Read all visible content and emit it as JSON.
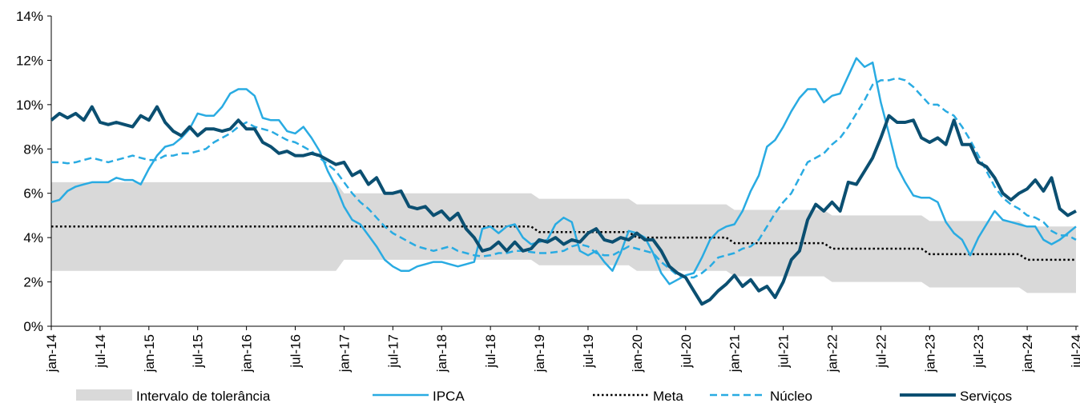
{
  "chart_data": {
    "type": "line",
    "categories": [
      "jan-14",
      null,
      null,
      null,
      null,
      null,
      "jul-14",
      null,
      null,
      null,
      null,
      null,
      "jan-15",
      null,
      null,
      null,
      null,
      null,
      "jul-15",
      null,
      null,
      null,
      null,
      null,
      "jan-16",
      null,
      null,
      null,
      null,
      null,
      "jul-16",
      null,
      null,
      null,
      null,
      null,
      "jan-17",
      null,
      null,
      null,
      null,
      null,
      "jul-17",
      null,
      null,
      null,
      null,
      null,
      "jan-18",
      null,
      null,
      null,
      null,
      null,
      "jul-18",
      null,
      null,
      null,
      null,
      null,
      "jan-19",
      null,
      null,
      null,
      null,
      null,
      "jul-19",
      null,
      null,
      null,
      null,
      null,
      "jan-20",
      null,
      null,
      null,
      null,
      null,
      "jul-20",
      null,
      null,
      null,
      null,
      null,
      "jan-21",
      null,
      null,
      null,
      null,
      null,
      "jul-21",
      null,
      null,
      null,
      null,
      null,
      "jan-22",
      null,
      null,
      null,
      null,
      null,
      "jul-22",
      null,
      null,
      null,
      null,
      null,
      "jan-23",
      null,
      null,
      null,
      null,
      null,
      "jul-23",
      null,
      null,
      null,
      null,
      null,
      "jan-24",
      null,
      null,
      null,
      null,
      null,
      "jul-24"
    ],
    "ylim": [
      0,
      14
    ],
    "yticks": [
      {
        "value": 0,
        "label": "0%"
      },
      {
        "value": 2,
        "label": "2%"
      },
      {
        "value": 4,
        "label": "4%"
      },
      {
        "value": 6,
        "label": "6%"
      },
      {
        "value": 8,
        "label": "8%"
      },
      {
        "value": 10,
        "label": "10%"
      },
      {
        "value": 12,
        "label": "12%"
      },
      {
        "value": 14,
        "label": "14%"
      }
    ],
    "series": [
      {
        "name": "Intervalo de tolerância",
        "kind": "band",
        "color": "#d9d9d9",
        "values": [
          6.5,
          6.5,
          6.5,
          6.5,
          6.5,
          6.5,
          6.5,
          6.5,
          6.5,
          6.5,
          6.5,
          6.5,
          6.5,
          6.5,
          6.5,
          6.5,
          6.5,
          6.5,
          6.5,
          6.5,
          6.5,
          6.5,
          6.5,
          6.5,
          6.5,
          6.5,
          6.5,
          6.5,
          6.5,
          6.5,
          6.5,
          6.5,
          6.5,
          6.5,
          6.5,
          6.5,
          6,
          6,
          6,
          6,
          6,
          6,
          6,
          6,
          6,
          6,
          6,
          6,
          6,
          6,
          6,
          6,
          6,
          6,
          6,
          6,
          6,
          6,
          6,
          6,
          5.75,
          5.75,
          5.75,
          5.75,
          5.75,
          5.75,
          5.75,
          5.75,
          5.75,
          5.75,
          5.75,
          5.75,
          5.5,
          5.5,
          5.5,
          5.5,
          5.5,
          5.5,
          5.5,
          5.5,
          5.5,
          5.5,
          5.5,
          5.5,
          5.25,
          5.25,
          5.25,
          5.25,
          5.25,
          5.25,
          5.25,
          5.25,
          5.25,
          5.25,
          5.25,
          5.25,
          5,
          5,
          5,
          5,
          5,
          5,
          5,
          5,
          5,
          5,
          5,
          5,
          4.75,
          4.75,
          4.75,
          4.75,
          4.75,
          4.75,
          4.75,
          4.75,
          4.75,
          4.75,
          4.75,
          4.75,
          4.5,
          4.5,
          4.5,
          4.5,
          4.5,
          4.5,
          4.5
        ],
        "lower": [
          2.5,
          2.5,
          2.5,
          2.5,
          2.5,
          2.5,
          2.5,
          2.5,
          2.5,
          2.5,
          2.5,
          2.5,
          2.5,
          2.5,
          2.5,
          2.5,
          2.5,
          2.5,
          2.5,
          2.5,
          2.5,
          2.5,
          2.5,
          2.5,
          2.5,
          2.5,
          2.5,
          2.5,
          2.5,
          2.5,
          2.5,
          2.5,
          2.5,
          2.5,
          2.5,
          2.5,
          3,
          3,
          3,
          3,
          3,
          3,
          3,
          3,
          3,
          3,
          3,
          3,
          3,
          3,
          3,
          3,
          3,
          3,
          3,
          3,
          3,
          3,
          3,
          3,
          2.75,
          2.75,
          2.75,
          2.75,
          2.75,
          2.75,
          2.75,
          2.75,
          2.75,
          2.75,
          2.75,
          2.75,
          2.5,
          2.5,
          2.5,
          2.5,
          2.5,
          2.5,
          2.5,
          2.5,
          2.5,
          2.5,
          2.5,
          2.5,
          2.25,
          2.25,
          2.25,
          2.25,
          2.25,
          2.25,
          2.25,
          2.25,
          2.25,
          2.25,
          2.25,
          2.25,
          2,
          2,
          2,
          2,
          2,
          2,
          2,
          2,
          2,
          2,
          2,
          2,
          1.75,
          1.75,
          1.75,
          1.75,
          1.75,
          1.75,
          1.75,
          1.75,
          1.75,
          1.75,
          1.75,
          1.75,
          1.5,
          1.5,
          1.5,
          1.5,
          1.5,
          1.5,
          1.5
        ]
      },
      {
        "name": "IPCA",
        "color": "#29abe2",
        "style": "solid",
        "width": 2.5,
        "values": [
          5.6,
          5.7,
          6.1,
          6.3,
          6.4,
          6.5,
          6.5,
          6.5,
          6.7,
          6.6,
          6.6,
          6.4,
          7.1,
          7.7,
          8.1,
          8.2,
          8.5,
          8.9,
          9.6,
          9.5,
          9.5,
          9.9,
          10.5,
          10.7,
          10.7,
          10.4,
          9.4,
          9.3,
          9.3,
          8.8,
          8.7,
          9.0,
          8.5,
          7.9,
          7.0,
          6.3,
          5.4,
          4.8,
          4.6,
          4.1,
          3.6,
          3.0,
          2.7,
          2.5,
          2.5,
          2.7,
          2.8,
          2.9,
          2.9,
          2.8,
          2.7,
          2.8,
          2.9,
          4.4,
          4.5,
          4.2,
          4.5,
          4.6,
          4.0,
          3.7,
          3.8,
          3.9,
          4.6,
          4.9,
          4.7,
          3.4,
          3.2,
          3.4,
          2.9,
          2.5,
          3.3,
          4.3,
          4.2,
          4.0,
          3.3,
          2.4,
          1.9,
          2.1,
          2.3,
          2.4,
          3.1,
          3.9,
          4.3,
          4.5,
          4.6,
          5.2,
          6.1,
          6.8,
          8.1,
          8.4,
          9.0,
          9.7,
          10.3,
          10.7,
          10.7,
          10.1,
          10.4,
          10.5,
          11.3,
          12.1,
          11.7,
          11.9,
          10.1,
          8.7,
          7.2,
          6.5,
          5.9,
          5.8,
          5.8,
          5.6,
          4.7,
          4.2,
          3.9,
          3.2,
          4.0,
          4.6,
          5.2,
          4.8,
          4.7,
          4.6,
          4.5,
          4.5,
          3.9,
          3.7,
          3.9,
          4.2,
          4.5
        ]
      },
      {
        "name": "Meta",
        "color": "#000000",
        "style": "dotted",
        "width": 2.5,
        "values": [
          4.5,
          4.5,
          4.5,
          4.5,
          4.5,
          4.5,
          4.5,
          4.5,
          4.5,
          4.5,
          4.5,
          4.5,
          4.5,
          4.5,
          4.5,
          4.5,
          4.5,
          4.5,
          4.5,
          4.5,
          4.5,
          4.5,
          4.5,
          4.5,
          4.5,
          4.5,
          4.5,
          4.5,
          4.5,
          4.5,
          4.5,
          4.5,
          4.5,
          4.5,
          4.5,
          4.5,
          4.5,
          4.5,
          4.5,
          4.5,
          4.5,
          4.5,
          4.5,
          4.5,
          4.5,
          4.5,
          4.5,
          4.5,
          4.5,
          4.5,
          4.5,
          4.5,
          4.5,
          4.5,
          4.5,
          4.5,
          4.5,
          4.5,
          4.5,
          4.5,
          4.25,
          4.25,
          4.25,
          4.25,
          4.25,
          4.25,
          4.25,
          4.25,
          4.25,
          4.25,
          4.25,
          4.25,
          4,
          4,
          4,
          4,
          4,
          4,
          4,
          4,
          4,
          4,
          4,
          4,
          3.75,
          3.75,
          3.75,
          3.75,
          3.75,
          3.75,
          3.75,
          3.75,
          3.75,
          3.75,
          3.75,
          3.75,
          3.5,
          3.5,
          3.5,
          3.5,
          3.5,
          3.5,
          3.5,
          3.5,
          3.5,
          3.5,
          3.5,
          3.5,
          3.25,
          3.25,
          3.25,
          3.25,
          3.25,
          3.25,
          3.25,
          3.25,
          3.25,
          3.25,
          3.25,
          3.25,
          3,
          3,
          3,
          3,
          3,
          3,
          3
        ]
      },
      {
        "name": "Núcleo",
        "color": "#29abe2",
        "style": "dashed",
        "width": 2.5,
        "values": [
          7.4,
          7.4,
          7.35,
          7.4,
          7.5,
          7.6,
          7.5,
          7.4,
          7.5,
          7.6,
          7.7,
          7.6,
          7.5,
          7.5,
          7.7,
          7.7,
          7.8,
          7.8,
          7.9,
          8.0,
          8.3,
          8.5,
          8.7,
          9.0,
          9.2,
          9.0,
          8.9,
          8.8,
          8.6,
          8.4,
          8.3,
          8.1,
          7.9,
          7.6,
          7.3,
          7.0,
          6.5,
          6.0,
          5.6,
          5.3,
          4.9,
          4.5,
          4.2,
          4.0,
          3.8,
          3.6,
          3.5,
          3.4,
          3.5,
          3.6,
          3.4,
          3.3,
          3.2,
          3.15,
          3.2,
          3.3,
          3.3,
          3.4,
          3.4,
          3.35,
          3.3,
          3.3,
          3.35,
          3.4,
          3.6,
          3.7,
          3.6,
          3.3,
          3.2,
          3.2,
          3.4,
          3.6,
          3.5,
          3.4,
          3.3,
          2.9,
          2.6,
          2.3,
          2.2,
          2.2,
          2.4,
          2.7,
          3.1,
          3.2,
          3.3,
          3.5,
          3.6,
          3.9,
          4.5,
          5.1,
          5.6,
          6.0,
          6.7,
          7.4,
          7.6,
          7.8,
          8.2,
          8.5,
          9.0,
          9.6,
          10.2,
          10.9,
          11.1,
          11.1,
          11.2,
          11.1,
          10.8,
          10.4,
          10.0,
          10.0,
          9.7,
          9.5,
          9.0,
          8.4,
          7.7,
          7.0,
          6.3,
          5.8,
          5.5,
          5.3,
          5.0,
          4.9,
          4.7,
          4.3,
          4.1,
          4.1,
          3.9
        ]
      },
      {
        "name": "Serviços",
        "color": "#0b4f71",
        "style": "solid",
        "width": 4,
        "values": [
          9.3,
          9.6,
          9.4,
          9.6,
          9.3,
          9.9,
          9.2,
          9.1,
          9.2,
          9.1,
          9.0,
          9.5,
          9.3,
          9.9,
          9.2,
          8.8,
          8.6,
          9.0,
          8.6,
          8.9,
          8.9,
          8.8,
          8.9,
          9.3,
          8.9,
          8.9,
          8.3,
          8.1,
          7.8,
          7.9,
          7.7,
          7.7,
          7.8,
          7.7,
          7.5,
          7.3,
          7.4,
          6.8,
          7.0,
          6.4,
          6.7,
          6.0,
          6.0,
          6.1,
          5.4,
          5.3,
          5.4,
          5.0,
          5.2,
          4.8,
          5.1,
          4.4,
          4.0,
          3.4,
          3.5,
          3.8,
          3.4,
          3.8,
          3.4,
          3.5,
          3.9,
          3.8,
          4.0,
          3.7,
          3.9,
          3.8,
          4.2,
          4.4,
          3.9,
          3.8,
          4.0,
          3.9,
          4.2,
          3.9,
          3.9,
          3.4,
          2.7,
          2.4,
          2.2,
          1.6,
          1.0,
          1.2,
          1.6,
          1.9,
          2.3,
          1.8,
          2.1,
          1.6,
          1.8,
          1.3,
          2.0,
          3.0,
          3.4,
          4.8,
          5.5,
          5.2,
          5.6,
          5.2,
          6.5,
          6.4,
          7.0,
          7.6,
          8.5,
          9.5,
          9.2,
          9.2,
          9.3,
          8.5,
          8.3,
          8.5,
          8.2,
          9.3,
          8.2,
          8.2,
          7.4,
          7.2,
          6.7,
          6.0,
          5.7,
          6.0,
          6.2,
          6.6,
          6.1,
          6.7,
          5.3,
          5.0,
          5.2
        ]
      }
    ]
  }
}
